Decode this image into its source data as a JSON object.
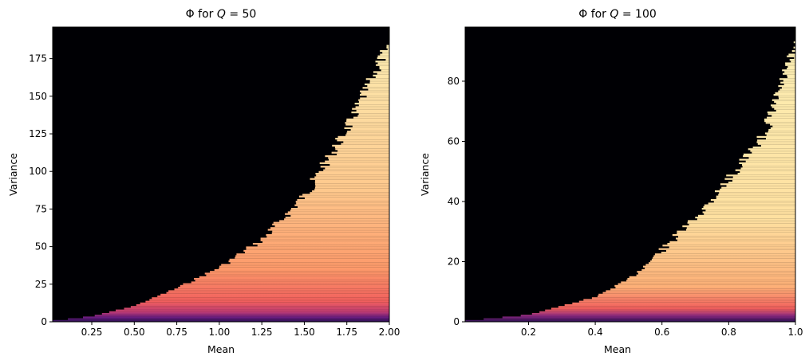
{
  "chart_data": [
    {
      "type": "heatmap",
      "title": "Φ for Q = 50",
      "title_parts": {
        "prefix": "Φ for ",
        "var": "Q",
        "suffix": " = 50"
      },
      "xlabel": "Mean",
      "ylabel": "Variance",
      "xlim": [
        0.02,
        2.0
      ],
      "ylim": [
        0,
        196
      ],
      "xticks": [
        0.25,
        0.5,
        0.75,
        1.0,
        1.25,
        1.5,
        1.75,
        2.0
      ],
      "xtick_labels": [
        "0.25",
        "0.50",
        "0.75",
        "1.00",
        "1.25",
        "1.50",
        "1.75",
        "2.00"
      ],
      "yticks": [
        0,
        25,
        50,
        75,
        100,
        125,
        150,
        175
      ],
      "ytick_labels": [
        "0",
        "25",
        "50",
        "75",
        "100",
        "125",
        "150",
        "175"
      ],
      "colormap": "magma",
      "boundary": [
        [
          0.02,
          0
        ],
        [
          0.25,
          3
        ],
        [
          0.5,
          10
        ],
        [
          0.75,
          22
        ],
        [
          1.0,
          36
        ],
        [
          1.25,
          55
        ],
        [
          1.5,
          85
        ],
        [
          1.75,
          130
        ],
        [
          2.0,
          188
        ]
      ],
      "grid": false
    },
    {
      "type": "heatmap",
      "title": "Φ for Q = 100",
      "title_parts": {
        "prefix": "Φ for ",
        "var": "Q",
        "suffix": " = 100"
      },
      "xlabel": "Mean",
      "ylabel": "Variance",
      "xlim": [
        0.01,
        1.0
      ],
      "ylim": [
        0,
        98
      ],
      "xticks": [
        0.2,
        0.4,
        0.6,
        0.8,
        1.0
      ],
      "xtick_labels": [
        "0.2",
        "0.4",
        "0.6",
        "0.8",
        "1.0"
      ],
      "yticks": [
        0,
        20,
        40,
        60,
        80
      ],
      "ytick_labels": [
        "0",
        "20",
        "40",
        "60",
        "80"
      ],
      "colormap": "magma",
      "boundary": [
        [
          0.01,
          0
        ],
        [
          0.2,
          2
        ],
        [
          0.4,
          8
        ],
        [
          0.5,
          14
        ],
        [
          0.6,
          24
        ],
        [
          0.7,
          35
        ],
        [
          0.8,
          48
        ],
        [
          0.9,
          62
        ],
        [
          1.0,
          93
        ]
      ],
      "grid": false
    }
  ]
}
